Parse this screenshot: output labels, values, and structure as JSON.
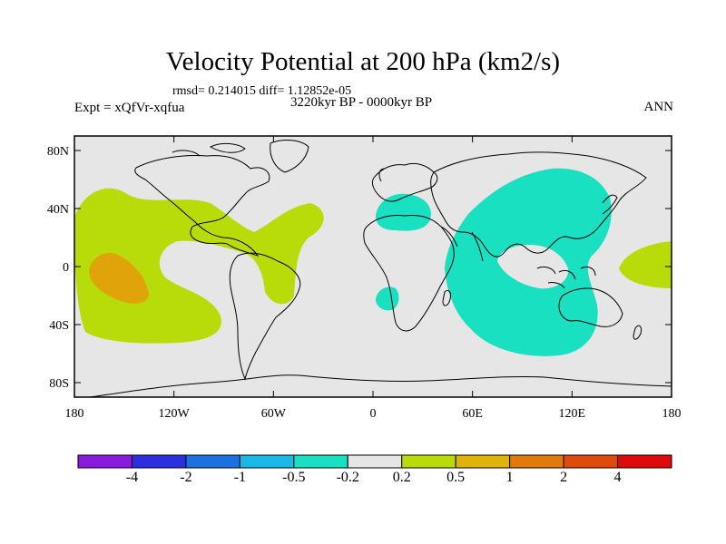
{
  "title": "Velocity Potential at 200 hPa (km2/s)",
  "stats": "rmsd= 0.214015 diff= 1.12852e-05",
  "experiment": "Expt = xQfVr-xqfua",
  "period": "3220kyr BP - 0000kyr BP",
  "season": "ANN",
  "lat_ticks": [
    "80N",
    "40N",
    "0",
    "40S",
    "80S"
  ],
  "lon_ticks": [
    "180",
    "120W",
    "60W",
    "0",
    "60E",
    "120E",
    "180"
  ],
  "colorbar": {
    "labels": [
      "-4",
      "-2",
      "-1",
      "-0.5",
      "-0.2",
      "0.2",
      "0.5",
      "1",
      "2",
      "4"
    ],
    "colors": [
      "#8a1ae0",
      "#2b2fe0",
      "#1a72e0",
      "#19b8e8",
      "#19e0c0",
      "#e6e6e6",
      "#b7dc0a",
      "#e0b20a",
      "#e07a0a",
      "#e04a0a",
      "#e00a0a"
    ]
  },
  "colors": {
    "background": "#e6e6e6",
    "positive_weak": "#b7dc0a",
    "positive_mid": "#e0a40a",
    "negative_weak": "#19e0c0",
    "coast": "#000000"
  }
}
